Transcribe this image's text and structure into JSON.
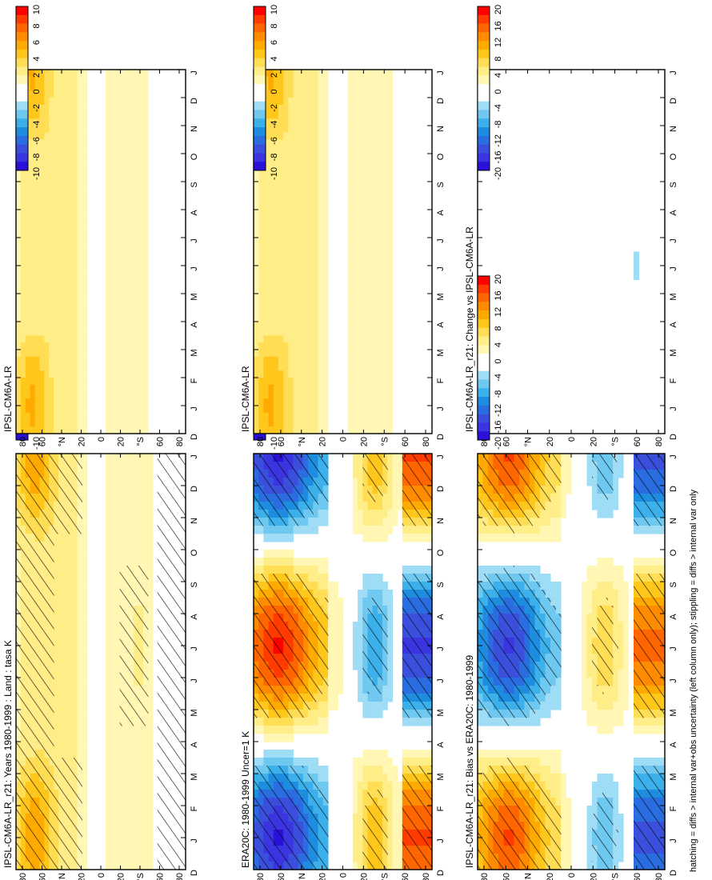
{
  "figure": {
    "caption": "hatching = diffs > internal var+obs uncertainty (left column only); stippling = diffs > internal var only"
  },
  "chart_data": [
    {
      "type": "heatmap",
      "title": "IPSL-CM6A-LR_r21: Years 1980-1999 : Land : tasa K",
      "month_labels": [
        "D",
        "J",
        "F",
        "M",
        "A",
        "M",
        "J",
        "J",
        "A",
        "S",
        "O",
        "N",
        "D",
        "J"
      ],
      "lat_labels": [
        "80",
        "60",
        "°N",
        "20",
        "0",
        "20",
        "°S",
        "60",
        "80"
      ],
      "colorbar_labels": [
        "10",
        "8",
        "6",
        "4",
        "2",
        "0",
        "-2",
        "-4",
        "-6",
        "-8",
        "-10"
      ],
      "vmax": 10,
      "hatched": true,
      "field": "model_anomaly"
    },
    {
      "type": "heatmap",
      "title": "IPSL-CM6A-LR",
      "month_labels": [
        "D",
        "J",
        "F",
        "M",
        "A",
        "M",
        "J",
        "J",
        "A",
        "S",
        "O",
        "N",
        "D",
        "J"
      ],
      "lat_labels": [
        "80",
        "60",
        "°N",
        "20",
        "0",
        "20",
        "°S",
        "60",
        "80"
      ],
      "colorbar_labels": [
        "10",
        "8",
        "6",
        "4",
        "2",
        "0",
        "-2",
        "-4",
        "-6",
        "-8",
        "-10"
      ],
      "vmax": 10,
      "hatched": false,
      "field": "model_anomaly_b"
    },
    {
      "type": "heatmap",
      "title": "ERA20C: 1980-1999 Uncer=1 K",
      "month_labels": [
        "D",
        "J",
        "F",
        "M",
        "A",
        "M",
        "J",
        "J",
        "A",
        "S",
        "O",
        "N",
        "D",
        "J"
      ],
      "lat_labels": [
        "80",
        "60",
        "°N",
        "20",
        "0",
        "20",
        "°S",
        "60",
        "80"
      ],
      "colorbar_labels": [
        "10",
        "8",
        "6",
        "4",
        "2",
        "0",
        "-2",
        "-4",
        "-6",
        "-8",
        "-10"
      ],
      "vmax": 10,
      "hatched": true,
      "field": "reference"
    },
    {
      "type": "heatmap",
      "title": "IPSL-CM6A-LR_r21: Change vs IPSL-CM6A-LR",
      "month_labels": [
        "D",
        "J",
        "F",
        "M",
        "A",
        "M",
        "J",
        "J",
        "A",
        "S",
        "O",
        "N",
        "D",
        "J"
      ],
      "lat_labels": [
        "80",
        "60",
        "°N",
        "20",
        "0",
        "20",
        "°S",
        "60",
        "80"
      ],
      "colorbar_labels": [
        "20",
        "16",
        "12",
        "8",
        "4",
        "0",
        "-4",
        "-8",
        "-12",
        "-16",
        "-20"
      ],
      "vmax": 20,
      "hatched": false,
      "field": "zero"
    },
    {
      "type": "heatmap",
      "title": "IPSL-CM6A-LR_r21: Bias vs ERA20C: 1980-1999",
      "month_labels": [
        "D",
        "J",
        "F",
        "M",
        "A",
        "M",
        "J",
        "J",
        "A",
        "S",
        "O",
        "N",
        "D",
        "J"
      ],
      "lat_labels": [
        "80",
        "60",
        "°N",
        "20",
        "0",
        "20",
        "°S",
        "60",
        "80"
      ],
      "colorbar_labels": [
        "20",
        "16",
        "12",
        "8",
        "4",
        "0",
        "-4",
        "-8",
        "-12",
        "-16",
        "-20"
      ],
      "vmax": 20,
      "hatched": true,
      "field": "bias"
    }
  ],
  "colormap": [
    "#ff0000",
    "#ff3b00",
    "#ff6600",
    "#ff8c00",
    "#ffaa00",
    "#ffc61c",
    "#ffdd55",
    "#ffee88",
    "#fff7b3",
    "#ffffff",
    "#ffffff",
    "#9fdcf5",
    "#6ec8f0",
    "#3cb0ea",
    "#1e8de0",
    "#2a6de0",
    "#3a50dc",
    "#3a35e0",
    "#2a10d8"
  ]
}
